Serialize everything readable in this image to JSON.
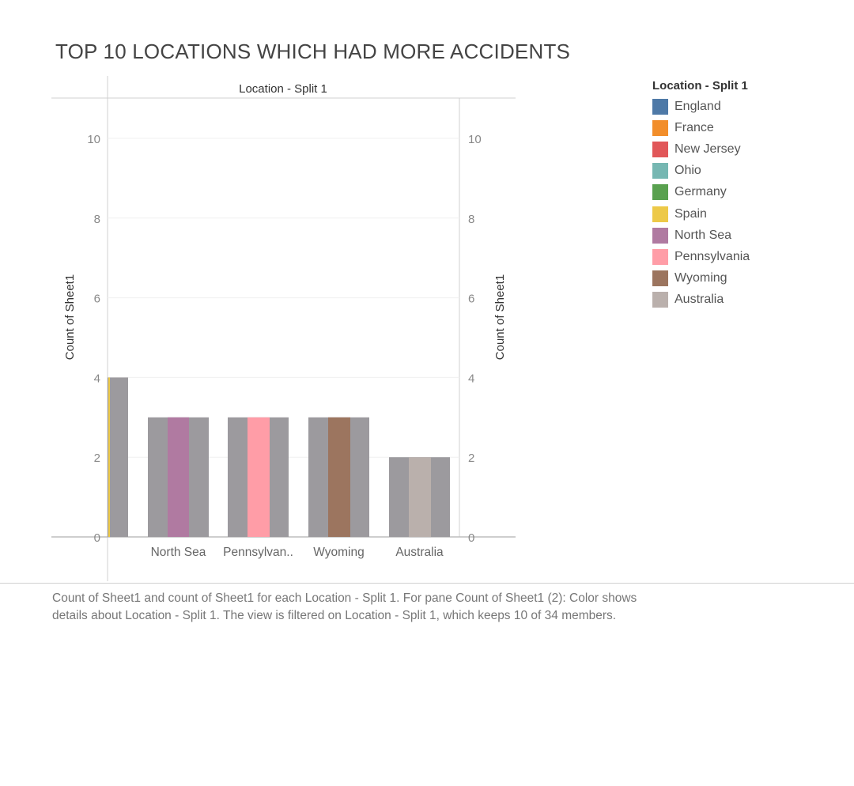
{
  "title": "TOP 10 LOCATIONS WHICH HAD MORE ACCIDENTS",
  "caption": "Count of Sheet1 and count of Sheet1 for each Location - Split 1.  For pane Count of Sheet1 (2): Color shows details about Location - Split 1. The view is filtered on Location - Split 1, which keeps 10 of 34 members.",
  "chart_data": {
    "type": "bar",
    "header": "Location - Split 1",
    "ylabel": "Count of Sheet1",
    "y2label": "Count of Sheet1",
    "ylim": [
      0,
      11
    ],
    "yticks": [
      0,
      2,
      4,
      6,
      8,
      10
    ],
    "grid": true,
    "legend_position": "right",
    "categories": [
      "",
      "North Sea",
      "Pennsylvan..",
      "Wyoming",
      "Australia"
    ],
    "series": [
      {
        "name": "Count of Sheet1",
        "values": [
          4,
          3,
          3,
          3,
          2
        ],
        "color": "#9c9a9e"
      },
      {
        "name": "Count of Sheet1 (2)",
        "values": [
          4,
          3,
          3,
          3,
          2
        ],
        "colors": [
          "#edc948",
          "#b07aa1",
          "#ff9da7",
          "#9c755f",
          "#bab0ac"
        ]
      }
    ],
    "legend": {
      "title": "Location - Split 1",
      "items": [
        {
          "label": "England",
          "color": "#4e79a7"
        },
        {
          "label": "France",
          "color": "#f28e2b"
        },
        {
          "label": "New Jersey",
          "color": "#e15759"
        },
        {
          "label": "Ohio",
          "color": "#76b7b2"
        },
        {
          "label": "Germany",
          "color": "#59a14f"
        },
        {
          "label": "Spain",
          "color": "#edc948"
        },
        {
          "label": "North Sea",
          "color": "#b07aa1"
        },
        {
          "label": "Pennsylvania",
          "color": "#ff9da7"
        },
        {
          "label": "Wyoming",
          "color": "#9c755f"
        },
        {
          "label": "Australia",
          "color": "#bab0ac"
        }
      ]
    }
  }
}
